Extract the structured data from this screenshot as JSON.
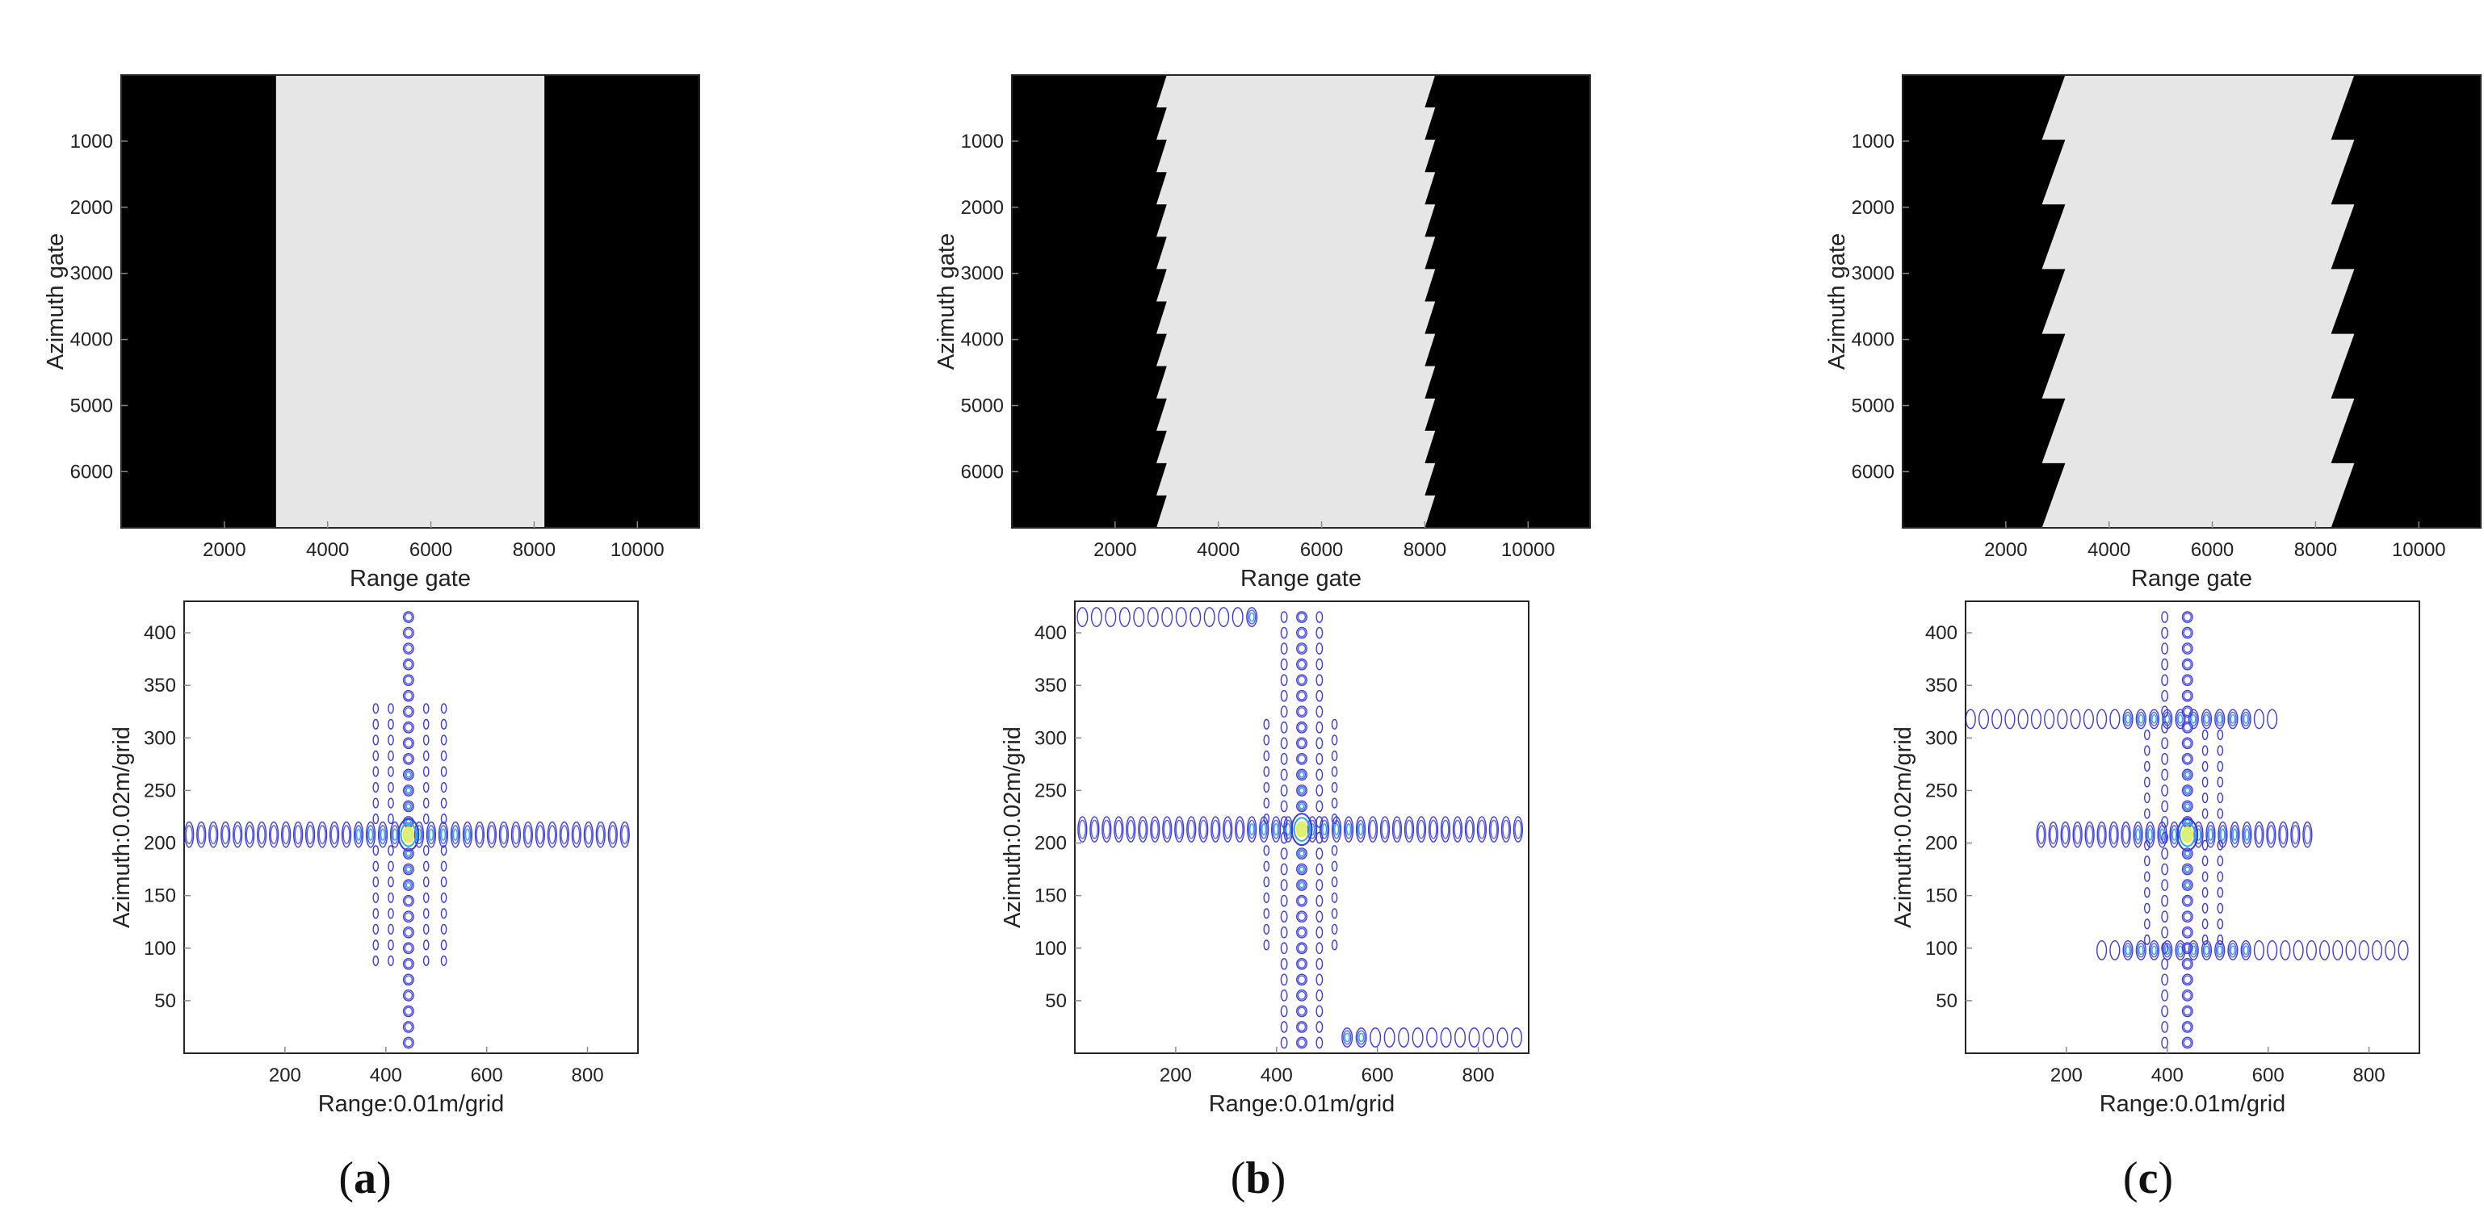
{
  "panels": [
    {
      "label": "(a)",
      "letter": "a"
    },
    {
      "label": "(b)",
      "letter": "b"
    },
    {
      "label": "(c)",
      "letter": "c"
    }
  ],
  "colors": {
    "black": "#000000",
    "swath": "#e6e6e6",
    "axis": "#262626",
    "contour_outer": "#3a3ae0",
    "contour_mid": "#2aa8e0",
    "contour_core": "#f2ec40"
  },
  "chart_data": [
    {
      "type": "heatmap",
      "panel": "a",
      "xlabel": "Range gate",
      "ylabel": "Azimuth gate",
      "xlim": [
        0,
        11200
      ],
      "ylim": [
        6850,
        0
      ],
      "xticks": [
        2000,
        4000,
        6000,
        8000,
        10000
      ],
      "yticks": [
        1000,
        2000,
        3000,
        4000,
        5000,
        6000
      ],
      "swath": {
        "left_edge": 3000,
        "right_edge": 8200,
        "sawtooth_offset": 0,
        "segments": 1
      }
    },
    {
      "type": "heatmap",
      "panel": "b",
      "xlabel": "Range gate",
      "ylabel": "Azimuth gate",
      "xlim": [
        0,
        11200
      ],
      "ylim": [
        6850,
        0
      ],
      "xticks": [
        2000,
        4000,
        6000,
        8000,
        10000
      ],
      "yticks": [
        1000,
        2000,
        3000,
        4000,
        5000,
        6000
      ],
      "swath": {
        "left_edge": 2800,
        "right_edge": 8000,
        "sawtooth_offset": 200,
        "segments": 14
      }
    },
    {
      "type": "heatmap",
      "panel": "c",
      "xlabel": "Range gate",
      "ylabel": "Azimuth gate",
      "xlim": [
        0,
        11200
      ],
      "ylim": [
        6850,
        0
      ],
      "xticks": [
        2000,
        4000,
        6000,
        8000,
        10000
      ],
      "yticks": [
        1000,
        2000,
        3000,
        4000,
        5000,
        6000
      ],
      "swath": {
        "left_edge": 2700,
        "right_edge": 8300,
        "sawtooth_offset": 450,
        "segments": 7
      }
    },
    {
      "type": "scatter",
      "subtype": "contour",
      "panel": "a",
      "xlabel": "Range:0.01m/grid",
      "ylabel": "Azimuth:0.02m/grid",
      "xlim": [
        0,
        900
      ],
      "ylim": [
        0,
        430
      ],
      "xticks": [
        200,
        400,
        600,
        800
      ],
      "yticks": [
        50,
        100,
        150,
        200,
        250,
        300,
        350,
        400
      ],
      "peak": [
        445,
        208
      ],
      "lobe_rows": [
        {
          "y": 208,
          "x_from": 10,
          "x_to": 880,
          "spacing": 24
        }
      ],
      "lobe_cols": [
        {
          "x": 445,
          "y_from": 10,
          "y_to": 428,
          "spacing": 15
        }
      ],
      "cross_lobes": {
        "cols": [
          410,
          480,
          515,
          380
        ],
        "y_half": 120
      }
    },
    {
      "type": "scatter",
      "subtype": "contour",
      "panel": "b",
      "xlabel": "Range:0.01m/grid",
      "ylabel": "Azimuth:0.02m/grid",
      "xlim": [
        0,
        900
      ],
      "ylim": [
        0,
        430
      ],
      "xticks": [
        200,
        400,
        600,
        800
      ],
      "yticks": [
        50,
        100,
        150,
        200,
        250,
        300,
        350,
        400
      ],
      "peak": [
        450,
        213
      ],
      "lobe_rows": [
        {
          "y": 213,
          "x_from": 15,
          "x_to": 890,
          "spacing": 24
        },
        {
          "y": 415,
          "x_from": 15,
          "x_to": 360,
          "spacing": 28
        },
        {
          "y": 15,
          "x_from": 540,
          "x_to": 880,
          "spacing": 28
        }
      ],
      "lobe_cols": [
        {
          "x": 450,
          "y_from": 10,
          "y_to": 428,
          "spacing": 15
        },
        {
          "x": 415,
          "y_from": 10,
          "y_to": 428,
          "spacing": 15
        },
        {
          "x": 485,
          "y_from": 10,
          "y_to": 428,
          "spacing": 15
        }
      ],
      "cross_lobes": {
        "cols": [
          380,
          515
        ],
        "y_half": 110
      }
    },
    {
      "type": "scatter",
      "subtype": "contour",
      "panel": "c",
      "xlabel": "Range:0.01m/grid",
      "ylabel": "Azimuth:0.02m/grid",
      "xlim": [
        0,
        900
      ],
      "ylim": [
        0,
        430
      ],
      "xticks": [
        200,
        400,
        600,
        800
      ],
      "yticks": [
        50,
        100,
        150,
        200,
        250,
        300,
        350,
        400
      ],
      "peak": [
        440,
        208
      ],
      "lobe_rows": [
        {
          "y": 208,
          "x_from": 150,
          "x_to": 690,
          "spacing": 24
        },
        {
          "y": 318,
          "x_from": 10,
          "x_to": 620,
          "spacing": 26
        },
        {
          "y": 98,
          "x_from": 270,
          "x_to": 890,
          "spacing": 26
        }
      ],
      "lobe_cols": [
        {
          "x": 440,
          "y_from": 10,
          "y_to": 428,
          "spacing": 15
        },
        {
          "x": 395,
          "y_from": 10,
          "y_to": 428,
          "spacing": 15
        }
      ],
      "cross_lobes": {
        "cols": [
          360,
          475,
          505
        ],
        "y_half": 100
      }
    }
  ]
}
